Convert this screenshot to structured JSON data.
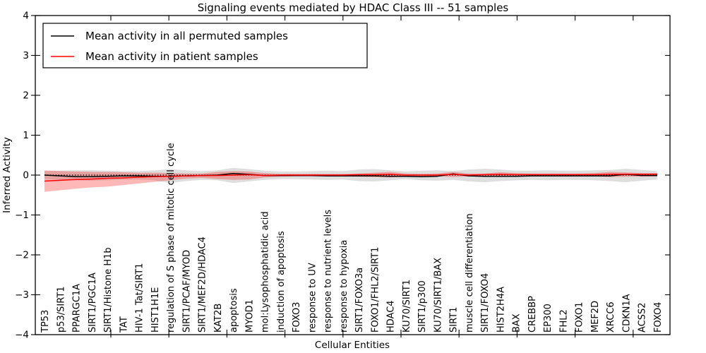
{
  "chart_data": {
    "type": "line",
    "title": "Signaling events mediated by HDAC Class III -- 51 samples",
    "xlabel": "Cellular Entities",
    "ylabel": "Inferred Activity",
    "ylim": [
      -4,
      4
    ],
    "yticks": [
      4,
      3,
      2,
      1,
      0,
      -1,
      -2,
      -3,
      -4
    ],
    "grid": false,
    "legend_position": "upper left",
    "categories": [
      "TP53",
      "p53/SIRT1",
      "PPARGC1A",
      "SIRT1/PGC1A",
      "SIRT1/Histone H1b",
      "TAT",
      "HIV-1 Tat/SIRT1",
      "HIST1H1E",
      "regulation of S phase of mitotic cell cycle",
      "SIRT1/PCAF/MYOD",
      "SIRT1/MEF2D/HDAC4",
      "KAT2B",
      "apoptosis",
      "MYOD1",
      "mol:Lysophosphatidic acid",
      "induction of apoptosis",
      "FOXO3",
      "response to UV",
      "response to nutrient levels",
      "response to hypoxia",
      "SIRT1/FOXO3a",
      "FOXO1/FHL2/SIRT1",
      "HDAC4",
      "KU70/SIRT1",
      "SIRT1/p300",
      "KU70/SIRT1/BAX",
      "SIRT1",
      "muscle cell differentiation",
      "SIRT1/FOXO4",
      "HIST2H4A",
      "BAX",
      "CREBBP",
      "EP300",
      "FHL2",
      "FOXO1",
      "MEF2D",
      "XRCC6",
      "CDKN1A",
      "ACSS2",
      "FOXO4"
    ],
    "series": [
      {
        "id": "permuted",
        "name": "Mean activity in all permuted samples",
        "color": "#000000",
        "values": [
          0.0,
          -0.02,
          -0.04,
          -0.04,
          -0.03,
          -0.02,
          -0.02,
          -0.03,
          -0.03,
          -0.02,
          -0.01,
          0.0,
          0.04,
          0.02,
          -0.01,
          -0.01,
          -0.01,
          -0.01,
          -0.02,
          -0.02,
          -0.02,
          -0.02,
          -0.03,
          -0.03,
          -0.04,
          -0.03,
          0.03,
          -0.02,
          -0.03,
          -0.03,
          -0.03,
          -0.02,
          -0.02,
          -0.02,
          -0.02,
          -0.02,
          -0.02,
          0.02,
          -0.01,
          -0.01
        ]
      },
      {
        "id": "patient",
        "name": "Mean activity in patient samples",
        "color": "#ff0000",
        "values": [
          -0.15,
          -0.13,
          -0.11,
          -0.1,
          -0.08,
          -0.07,
          -0.05,
          -0.04,
          -0.03,
          -0.02,
          -0.01,
          -0.01,
          0.0,
          0.01,
          -0.01,
          0.0,
          0.0,
          0.0,
          0.0,
          0.0,
          0.01,
          0.01,
          0.02,
          0.0,
          0.0,
          0.0,
          0.02,
          0.0,
          0.01,
          0.02,
          0.01,
          0.01,
          0.01,
          0.01,
          0.01,
          0.01,
          0.02,
          0.02,
          0.02,
          0.02
        ]
      }
    ],
    "bands": [
      {
        "id": "permuted",
        "name": "permuted-samples-envelope",
        "color": "rgba(0,0,0,0.13)",
        "upper": [
          0.1,
          0.11,
          0.12,
          0.12,
          0.11,
          0.1,
          0.1,
          0.12,
          0.15,
          0.12,
          0.1,
          0.12,
          0.18,
          0.15,
          0.11,
          0.09,
          0.09,
          0.1,
          0.11,
          0.1,
          0.14,
          0.15,
          0.12,
          0.09,
          0.11,
          0.12,
          0.1,
          0.14,
          0.16,
          0.14,
          0.11,
          0.11,
          0.12,
          0.11,
          0.11,
          0.12,
          0.13,
          0.16,
          0.13,
          0.1
        ],
        "lower": [
          -0.1,
          -0.12,
          -0.13,
          -0.14,
          -0.13,
          -0.11,
          -0.11,
          -0.13,
          -0.2,
          -0.15,
          -0.12,
          -0.13,
          -0.2,
          -0.16,
          -0.12,
          -0.1,
          -0.1,
          -0.11,
          -0.12,
          -0.11,
          -0.15,
          -0.16,
          -0.13,
          -0.1,
          -0.13,
          -0.14,
          -0.12,
          -0.16,
          -0.18,
          -0.15,
          -0.13,
          -0.12,
          -0.13,
          -0.12,
          -0.12,
          -0.13,
          -0.15,
          -0.18,
          -0.14,
          -0.11
        ]
      },
      {
        "id": "patient",
        "name": "patient-samples-envelope",
        "color": "rgba(255,0,0,0.28)",
        "upper": [
          0.12,
          0.1,
          0.09,
          0.08,
          0.08,
          0.07,
          0.06,
          0.06,
          0.05,
          0.04,
          0.04,
          0.08,
          0.1,
          0.09,
          0.05,
          0.03,
          0.03,
          0.03,
          0.03,
          0.03,
          0.04,
          0.06,
          0.08,
          0.04,
          0.03,
          0.04,
          0.08,
          0.04,
          0.04,
          0.07,
          0.05,
          0.04,
          0.04,
          0.04,
          0.04,
          0.05,
          0.08,
          0.07,
          0.05,
          0.05
        ],
        "lower": [
          -0.42,
          -0.38,
          -0.34,
          -0.31,
          -0.29,
          -0.25,
          -0.21,
          -0.17,
          -0.13,
          -0.09,
          -0.07,
          -0.1,
          -0.12,
          -0.11,
          -0.06,
          -0.04,
          -0.03,
          -0.03,
          -0.03,
          -0.03,
          -0.04,
          -0.05,
          -0.06,
          -0.03,
          -0.03,
          -0.03,
          -0.05,
          -0.03,
          -0.03,
          -0.04,
          -0.03,
          -0.03,
          -0.03,
          -0.03,
          -0.03,
          -0.03,
          -0.05,
          -0.04,
          -0.04,
          -0.03
        ]
      }
    ],
    "zero_line": {
      "y": 0,
      "style": "dotted",
      "color": "#000000"
    }
  }
}
